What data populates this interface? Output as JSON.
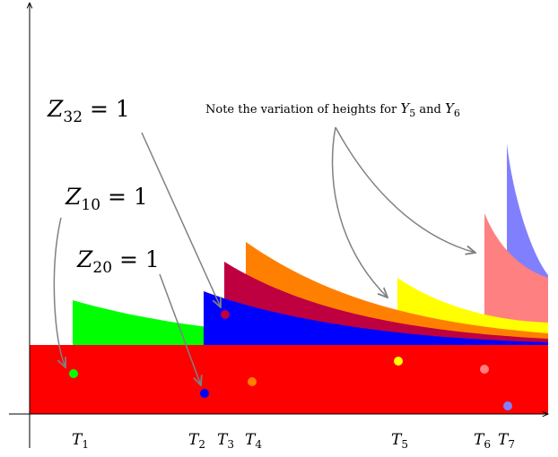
{
  "annotations": {
    "z32": {
      "var": "Z",
      "sub": "32",
      "rest": " = 1"
    },
    "z10": {
      "var": "Z",
      "sub": "10",
      "rest": " = 1"
    },
    "z20": {
      "var": "Z",
      "sub": "20",
      "rest": " = 1"
    },
    "note": {
      "prefix": "Note the variation of heights for ",
      "y5": {
        "var": "Y",
        "sub": "5"
      },
      "mid": " and ",
      "y6": {
        "var": "Y",
        "sub": "6"
      }
    }
  },
  "ticks": [
    {
      "var": "T",
      "sub": "1"
    },
    {
      "var": "T",
      "sub": "2"
    },
    {
      "var": "T",
      "sub": "3"
    },
    {
      "var": "T",
      "sub": "4"
    },
    {
      "var": "T",
      "sub": "5"
    },
    {
      "var": "T",
      "sub": "6"
    },
    {
      "var": "T",
      "sub": "7"
    }
  ],
  "colors": {
    "base": "#ff0000",
    "green": "#00ff00",
    "blue": "#0000ff",
    "crimson": "#bf0040",
    "orange": "#ff8000",
    "yellow": "#ffff00",
    "pink": "#ff8080",
    "lavender": "#8080ff",
    "arrow": "#808080"
  }
}
